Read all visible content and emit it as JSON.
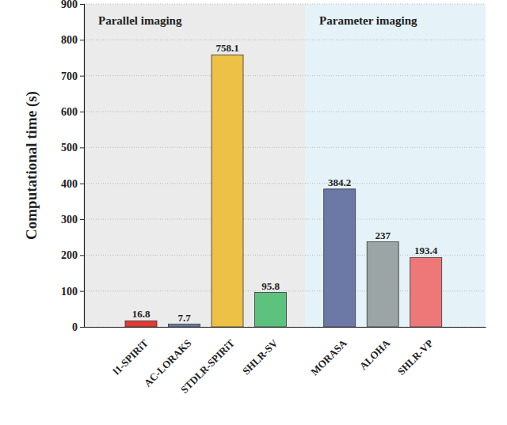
{
  "chart_data": {
    "type": "bar",
    "y_label": "Computational time (s)",
    "categories": [
      "l1-SPIRiT",
      "AC-LORAKS",
      "STDLR-SPIRiT",
      "SHLR-SV",
      "MORASA",
      "ALOHA",
      "SHLR-VP"
    ],
    "values": [
      16.8,
      7.7,
      758.1,
      95.8,
      384.2,
      237,
      193.4
    ],
    "colors": [
      "#e23b34",
      "#6c7d9e",
      "#ecc145",
      "#5ec27f",
      "#6c78a6",
      "#9ba5a6",
      "#ee7878"
    ],
    "ylim": [
      0,
      900
    ],
    "yticks": [
      0,
      100,
      200,
      300,
      400,
      500,
      600,
      700,
      800,
      900
    ],
    "grid": true,
    "data_labels": true,
    "groups": [
      {
        "name": "Parallel imaging",
        "color": "#ebebeb",
        "categories": [
          "l1-SPIRiT",
          "AC-LORAKS",
          "STDLR-SPIRiT",
          "SHLR-SV"
        ]
      },
      {
        "name": "Parameter imaging",
        "color": "#e5f3f8",
        "categories": [
          "MORASA",
          "ALOHA",
          "SHLR-VP"
        ]
      }
    ]
  }
}
